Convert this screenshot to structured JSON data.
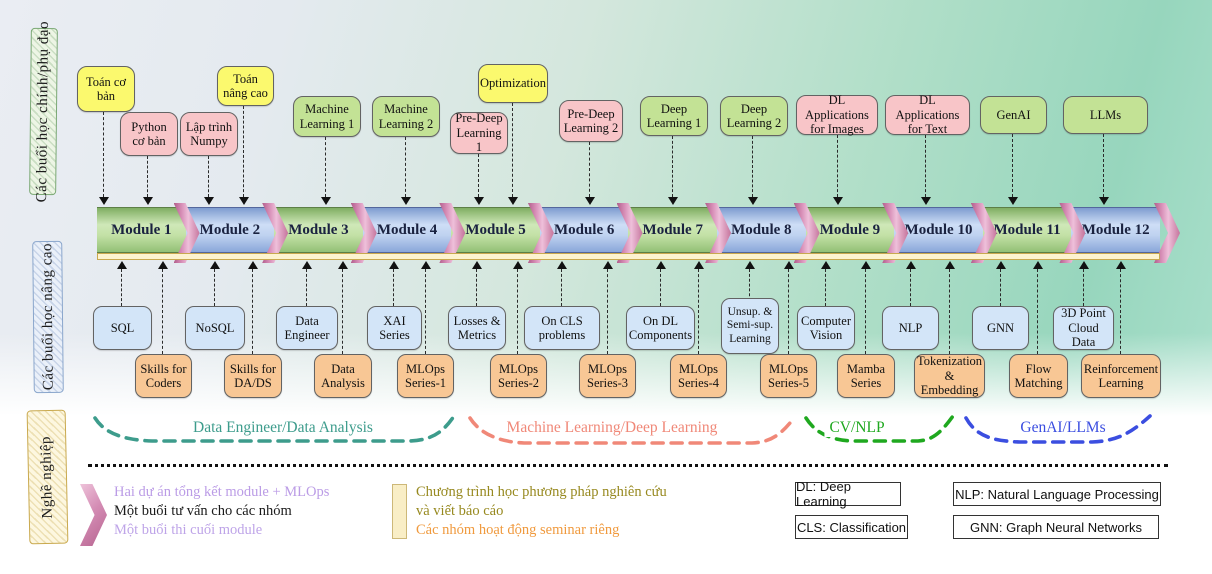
{
  "diagram": {
    "left_labels": {
      "top": "Các buổi học chính/phụ đạo",
      "middle": "Các buổi học nâng cao",
      "bottom": "Nghề nghiệp"
    },
    "top_boxes": [
      {
        "label": "Toán cơ bản",
        "type": "yellow"
      },
      {
        "label": "Python cơ bản",
        "type": "pink"
      },
      {
        "label": "Lập trình Numpy",
        "type": "pink"
      },
      {
        "label": "Toán nâng cao",
        "type": "yellow"
      },
      {
        "label": "Machine Learning 1",
        "type": "green"
      },
      {
        "label": "Machine Learning 2",
        "type": "green"
      },
      {
        "label": "Pre-Deep Learning 1",
        "type": "pink"
      },
      {
        "label": "Optimization",
        "type": "yellow"
      },
      {
        "label": "Pre-Deep Learning 2",
        "type": "pink"
      },
      {
        "label": "Deep Learning 1",
        "type": "green"
      },
      {
        "label": "Deep Learning 2",
        "type": "green"
      },
      {
        "label": "DL Applications for Images",
        "type": "pink"
      },
      {
        "label": "DL Applications for Text",
        "type": "pink"
      },
      {
        "label": "GenAI",
        "type": "green"
      },
      {
        "label": "LLMs",
        "type": "green"
      }
    ],
    "modules": [
      "Module 1",
      "Module 2",
      "Module 3",
      "Module 4",
      "Module 5",
      "Module 6",
      "Module 7",
      "Module 8",
      "Module 9",
      "Module 10",
      "Module 11",
      "Module 12"
    ],
    "advanced_boxes": [
      {
        "label": "SQL"
      },
      {
        "label": "NoSQL"
      },
      {
        "label": "Data Engineer"
      },
      {
        "label": "XAI Series"
      },
      {
        "label": "Losses & Metrics"
      },
      {
        "label": "On CLS problems"
      },
      {
        "label": "On DL Components"
      },
      {
        "label": "Unsup. & Semi-sup. Learning"
      },
      {
        "label": "Computer Vision"
      },
      {
        "label": "NLP"
      },
      {
        "label": "GNN"
      },
      {
        "label": "3D Point Cloud Data"
      }
    ],
    "extra_boxes": [
      {
        "label": "Skills for Coders"
      },
      {
        "label": "Skills for DA/DS"
      },
      {
        "label": "Data Analysis"
      },
      {
        "label": "MLOps Series-1"
      },
      {
        "label": "MLOps Series-2"
      },
      {
        "label": "MLOps Series-3"
      },
      {
        "label": "MLOps Series-4"
      },
      {
        "label": "MLOps Series-5"
      },
      {
        "label": "Mamba Series"
      },
      {
        "label": "Tokenization & Embedding"
      },
      {
        "label": "Flow Matching"
      },
      {
        "label": "Reinforcement Learning"
      }
    ],
    "career_paths": [
      {
        "label": "Data Engineer/Data Analysis",
        "color": "#3d9c8c"
      },
      {
        "label": "Machine Learning/Deep Learning",
        "color": "#f08878"
      },
      {
        "label": "CV/NLP",
        "color": "#1fa81f"
      },
      {
        "label": "GenAI/LLMs",
        "color": "#3b4ee0"
      }
    ],
    "legend": {
      "module_marker_lines": [
        {
          "text": "Hai dự án tổng kết module + MLOps",
          "color": "#bb9ce6"
        },
        {
          "text": "Một buổi tư vấn cho các nhóm",
          "color": "#1a1a1a"
        },
        {
          "text": "Một buổi thi cuối module",
          "color": "#bea4e8"
        }
      ],
      "program_marker_lines": [
        {
          "text": "Chương trình học phương pháp nghiên cứu và viết báo cáo",
          "color": "#97891f"
        },
        {
          "text": "Các nhóm hoạt động seminar riêng",
          "color": "#f09a3e"
        }
      ],
      "abbreviations": [
        "DL: Deep Learning",
        "CLS: Classification",
        "NLP: Natural Language Processing",
        "GNN: Graph Neural Networks"
      ]
    },
    "colors": {
      "yellow_box": "#fbf96e",
      "pink_box": "#f8c5c8",
      "green_box": "#c3e295",
      "blue_box": "#d3e5f8",
      "orange_box": "#f8c795",
      "module_green": "#b8dc9c",
      "module_blue": "#b4c9ec",
      "chevron_pink": "#d890b8",
      "strip_yellow": "#fdf3cf"
    }
  }
}
